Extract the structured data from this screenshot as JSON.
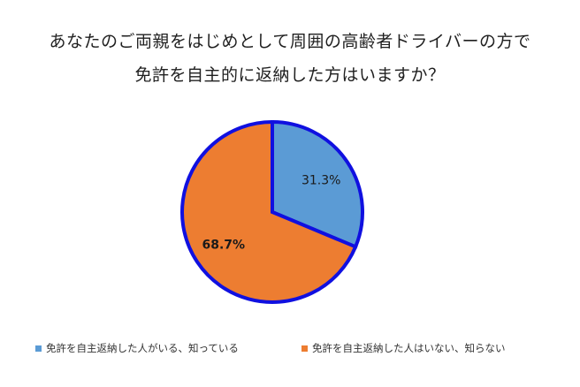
{
  "chart_data": {
    "type": "pie",
    "title": "あなたのご両親をはじめとして周囲の高齢者ドライバーの方で\n免許を自主的に返納した方はいますか？",
    "title_lines": [
      "あなたのご両親をはじめとして周囲の高齢者ドライバーの方で",
      "免許を自主的に返納した方はいますか？"
    ],
    "slices": [
      {
        "label": "免許を自主返納した人がいる、知っている",
        "value": 31.3,
        "display": "31.3%",
        "color": "#5b9bd5",
        "label_bold": false
      },
      {
        "label": "免許を自主返納した人はいない、知らない",
        "value": 68.7,
        "display": "68.7%",
        "color": "#ed7d31",
        "label_bold": true
      }
    ],
    "start_angle_deg": 0,
    "direction": "clockwise",
    "outline_color": "#1010e0",
    "legend_position": "bottom"
  }
}
